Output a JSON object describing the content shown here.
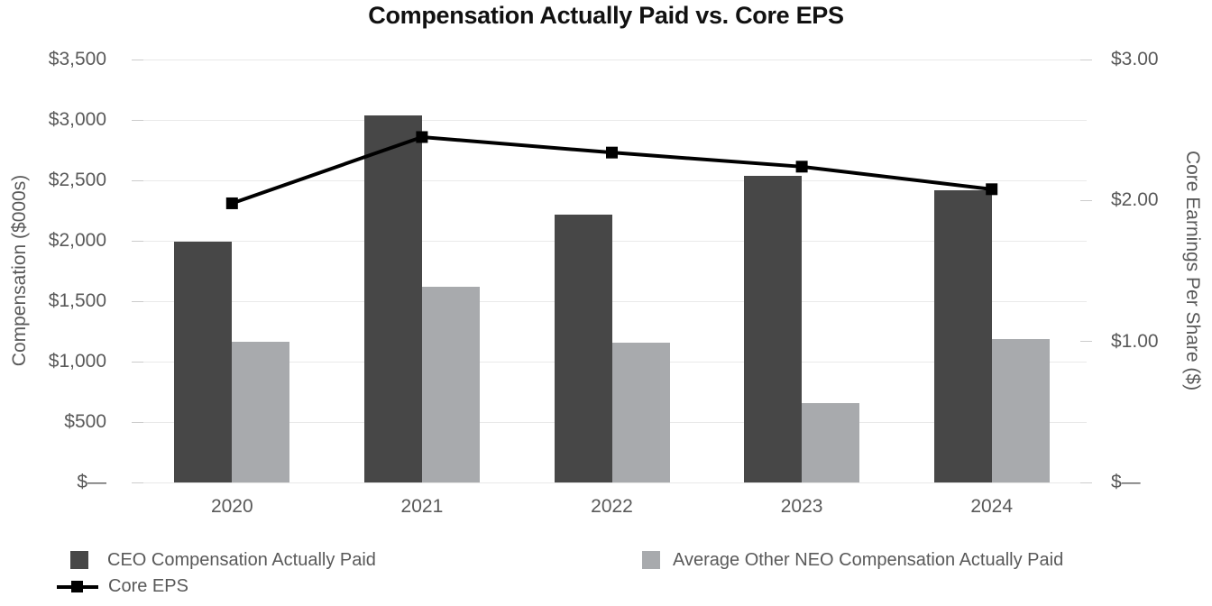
{
  "title": "Compensation Actually Paid vs. Core EPS",
  "chart_data": {
    "type": "combo-bar-line",
    "title": "Compensation Actually Paid vs. Core EPS",
    "categories": [
      "2020",
      "2021",
      "2022",
      "2023",
      "2024"
    ],
    "series": [
      {
        "name": "CEO Compensation Actually Paid",
        "type": "bar",
        "axis": "left",
        "color": "#474747",
        "values": [
          1990,
          3035,
          2215,
          2535,
          2420
        ]
      },
      {
        "name": "Average Other NEO Compensation Actually Paid",
        "type": "bar",
        "axis": "left",
        "color": "#a8aaad",
        "values": [
          1165,
          1620,
          1160,
          660,
          1185
        ]
      },
      {
        "name": "Core EPS",
        "type": "line",
        "axis": "right",
        "color": "#000000",
        "marker": "square",
        "values": [
          1.98,
          2.45,
          2.34,
          2.24,
          2.08
        ]
      }
    ],
    "left_axis": {
      "label": "Compensation ($000s)",
      "ticks": [
        "$3,500",
        "$3,000",
        "$2,500",
        "$2,000",
        "$1,500",
        "$1,000",
        "$500",
        "$—"
      ],
      "tick_values": [
        3500,
        3000,
        2500,
        2000,
        1500,
        1000,
        500,
        0
      ],
      "range": [
        0,
        3500
      ]
    },
    "right_axis": {
      "label": "Core Earnings Per Share ($)",
      "ticks": [
        "$3.00",
        "$2.00",
        "$1.00",
        "$—"
      ],
      "tick_values": [
        3,
        2,
        1,
        0
      ],
      "range": [
        0,
        3
      ]
    },
    "grid": true,
    "legend_position": "bottom"
  },
  "legend": {
    "items": [
      {
        "label": "CEO Compensation Actually Paid",
        "swatch": "square",
        "color": "#474747"
      },
      {
        "label": "Average Other NEO Compensation Actually Paid",
        "swatch": "square",
        "color": "#a8aaad"
      },
      {
        "label": "Core EPS",
        "swatch": "line-marker",
        "color": "#000000"
      }
    ]
  },
  "colors": {
    "ceo_bar": "#474747",
    "neo_bar": "#a8aaad",
    "eps_line": "#000000",
    "gridline": "#e9e9e9",
    "axis_text": "#595959",
    "title_text": "#111111"
  }
}
